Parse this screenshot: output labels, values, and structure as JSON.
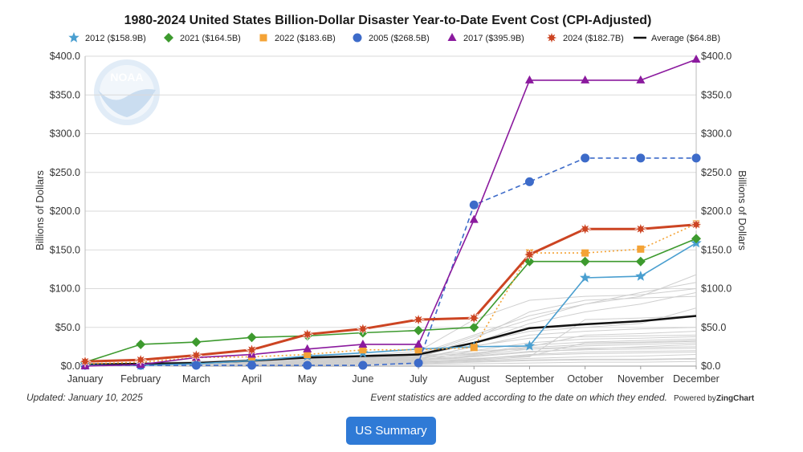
{
  "chart_data": {
    "type": "line",
    "title": "1980-2024 United States Billion-Dollar Disaster Year-to-Date Event Cost (CPI-Adjusted)",
    "ylabel_left": "Billions of Dollars",
    "ylabel_right": "Billions of Dollars",
    "ylim": [
      0,
      400
    ],
    "y_ticks": [
      "$0.0",
      "$50.0",
      "$100.0",
      "$150.0",
      "$200.0",
      "$250.0",
      "$300.0",
      "$350.0",
      "$400.0"
    ],
    "y_ticks_right": [
      "$0.0",
      "$50.0",
      "$100.0",
      "$150.0",
      "$200.0",
      "$250.0",
      "$300.0",
      "$350.0",
      "$400.0"
    ],
    "categories": [
      "January",
      "February",
      "March",
      "April",
      "May",
      "June",
      "July",
      "August",
      "September",
      "October",
      "November",
      "December"
    ],
    "grid": true,
    "legend_position": "top",
    "series": [
      {
        "name": "2012 ($158.9B)",
        "color": "#4a9fd0",
        "marker": "star",
        "dash": "solid",
        "values": [
          1,
          1,
          3,
          7,
          13,
          17,
          22,
          25,
          26,
          114,
          116,
          158.9
        ]
      },
      {
        "name": "2021 ($164.5B)",
        "color": "#3d9a2e",
        "marker": "diamond",
        "dash": "solid",
        "values": [
          5,
          28,
          31,
          37,
          39,
          43,
          46,
          50,
          135,
          135,
          135,
          164.5
        ]
      },
      {
        "name": "2022 ($183.6B)",
        "color": "#f4a336",
        "marker": "square",
        "dash": "dotted",
        "values": [
          3,
          5,
          11,
          12,
          15,
          21,
          21,
          24,
          146,
          146,
          151,
          183.6
        ]
      },
      {
        "name": "2005 ($268.5B)",
        "color": "#3d6bc9",
        "marker": "circle",
        "dash": "dashed",
        "values": [
          1,
          1,
          1,
          1,
          1,
          1,
          4,
          208,
          238,
          268.5,
          268.5,
          268.5
        ]
      },
      {
        "name": "2017 ($395.9B)",
        "color": "#8b1a9e",
        "marker": "triangle",
        "dash": "solid",
        "values": [
          0,
          2,
          11,
          15,
          22,
          28,
          28,
          189,
          369,
          369,
          369,
          395.9
        ]
      },
      {
        "name": "2024 ($182.7B)",
        "color": "#cc4422",
        "marker": "burst",
        "dash": "solid",
        "values": [
          6,
          8,
          14,
          21,
          41,
          48,
          60,
          62,
          144,
          177,
          177,
          182.7
        ]
      },
      {
        "name": "Average ($64.8B)",
        "color": "#111111",
        "marker": "none",
        "dash": "solid",
        "values": [
          2,
          3,
          4,
          7,
          11,
          13,
          15,
          30,
          49,
          54,
          58,
          64.8
        ]
      }
    ],
    "background_years": [
      [
        0.5,
        1,
        2,
        3,
        4,
        5,
        6,
        20,
        22,
        23,
        24,
        25
      ],
      [
        1,
        2,
        3,
        5,
        6,
        8,
        10,
        25,
        40,
        45,
        48,
        50
      ],
      [
        0,
        1,
        2,
        4,
        6,
        9,
        12,
        30,
        55,
        70,
        80,
        95
      ],
      [
        1,
        1,
        1,
        2,
        2,
        3,
        4,
        6,
        8,
        9,
        9,
        10
      ],
      [
        2,
        4,
        6,
        8,
        10,
        12,
        14,
        38,
        60,
        80,
        95,
        108
      ],
      [
        0,
        0.5,
        1,
        2,
        3,
        5,
        7,
        12,
        18,
        22,
        25,
        28
      ],
      [
        1,
        2,
        4,
        6,
        9,
        12,
        16,
        40,
        65,
        80,
        90,
        118
      ],
      [
        0,
        1,
        1,
        2,
        3,
        4,
        5,
        9,
        15,
        18,
        19,
        20
      ],
      [
        2,
        3,
        5,
        7,
        10,
        14,
        19,
        60,
        85,
        90,
        92,
        100
      ],
      [
        1,
        1,
        2,
        3,
        5,
        7,
        8,
        10,
        13,
        30,
        31,
        33
      ],
      [
        0,
        0,
        1,
        1,
        2,
        2,
        3,
        5,
        7,
        8,
        8,
        9
      ],
      [
        1,
        2,
        3,
        4,
        7,
        9,
        11,
        15,
        25,
        40,
        42,
        45
      ],
      [
        0,
        1,
        2,
        3,
        4,
        5,
        8,
        26,
        36,
        38,
        39,
        40
      ],
      [
        1,
        2,
        3,
        5,
        8,
        10,
        12,
        35,
        70,
        85,
        88,
        90
      ],
      [
        0,
        0,
        0.5,
        1,
        1,
        2,
        2,
        3,
        4,
        5,
        5,
        6
      ],
      [
        2,
        3,
        4,
        6,
        9,
        11,
        13,
        20,
        30,
        35,
        36,
        38
      ],
      [
        1,
        1,
        2,
        3,
        4,
        6,
        7,
        14,
        22,
        26,
        28,
        30
      ],
      [
        0,
        1,
        1,
        2,
        4,
        5,
        6,
        8,
        12,
        60,
        62,
        65
      ],
      [
        1,
        2,
        3,
        4,
        5,
        7,
        9,
        13,
        19,
        21,
        22,
        23
      ],
      [
        0,
        1,
        2,
        3,
        5,
        7,
        10,
        16,
        27,
        31,
        33,
        35
      ],
      [
        1,
        2,
        4,
        6,
        8,
        10,
        12,
        30,
        45,
        50,
        55,
        75
      ],
      [
        0,
        0,
        1,
        2,
        3,
        4,
        5,
        7,
        10,
        12,
        13,
        15
      ],
      [
        2,
        3,
        5,
        7,
        9,
        11,
        13,
        17,
        24,
        28,
        30,
        32
      ],
      [
        1,
        1,
        2,
        2,
        3,
        4,
        6,
        9,
        14,
        16,
        17,
        18
      ]
    ]
  },
  "footer": {
    "updated": "Updated: January 10, 2025",
    "note": "Event statistics are added according to the date on which they ended.",
    "powered_by": "Powered by",
    "powered_brand": "ZingChart"
  },
  "logo_text": "NOAA",
  "button": {
    "label": "US Summary"
  }
}
